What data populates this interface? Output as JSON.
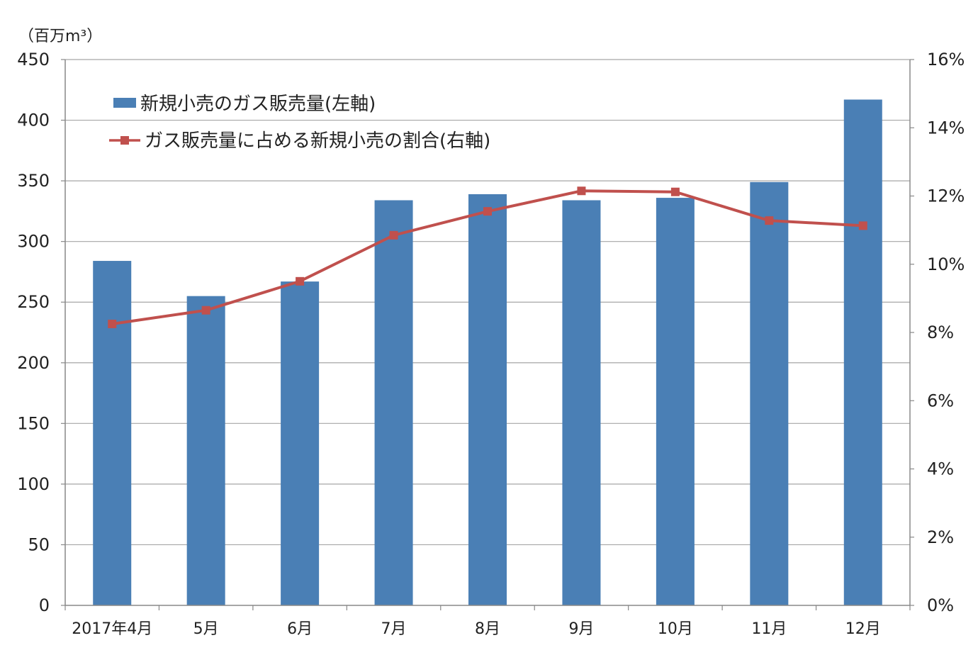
{
  "chart_data": {
    "type": "bar",
    "unit_label": "（百万m³）",
    "categories": [
      "2017年4月",
      "5月",
      "6月",
      "7月",
      "8月",
      "9月",
      "10月",
      "11月",
      "12月"
    ],
    "series": [
      {
        "name": "新規小売のガス販売量(左軸)",
        "type": "bar",
        "axis": "left",
        "values": [
          284,
          255,
          267,
          334,
          339,
          334,
          336,
          349,
          417
        ]
      },
      {
        "name": "ガス販売量に占める新規小売の割合(右軸)",
        "type": "line",
        "axis": "right",
        "values": [
          8.25,
          8.65,
          9.5,
          10.85,
          11.55,
          12.15,
          12.12,
          11.28,
          11.13
        ]
      }
    ],
    "left_axis": {
      "ylim": [
        0,
        450
      ],
      "ticks": [
        "0",
        "50",
        "100",
        "150",
        "200",
        "250",
        "300",
        "350",
        "400",
        "450"
      ]
    },
    "right_axis": {
      "ylim": [
        0,
        16
      ],
      "ticks": [
        "0%",
        "2%",
        "4%",
        "6%",
        "8%",
        "10%",
        "12%",
        "14%",
        "16%"
      ]
    },
    "grid": true,
    "legend_position": "top-left",
    "colors": {
      "bar": "#4a7fb5",
      "line": "#c0504d",
      "grid": "#a6a6a6",
      "axis": "#888888"
    }
  }
}
